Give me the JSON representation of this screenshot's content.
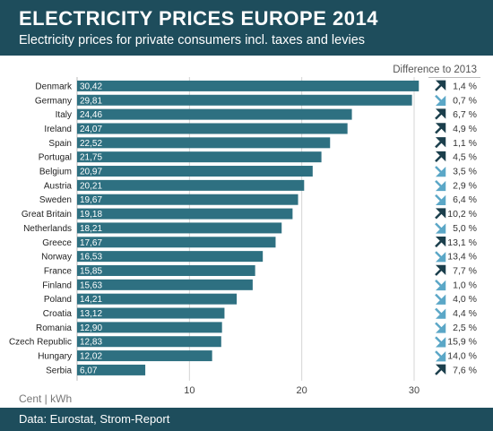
{
  "header": {
    "title": "ELECTRICITY PRICES EUROPE 2014",
    "subtitle": "Electricity prices for private consumers incl. taxes and levies"
  },
  "footer": {
    "source": "Data: Eurostat, Strom-Report"
  },
  "colors": {
    "header_bg": "#1e4d5c",
    "bar": "#2e7081",
    "arrow_up": "#1b3f4c",
    "arrow_down": "#5ba7c7"
  },
  "chart_data": {
    "type": "bar",
    "orientation": "horizontal",
    "title": "ELECTRICITY PRICES EUROPE 2014",
    "subtitle": "Electricity prices for private consumers incl. taxes and levies",
    "xlabel": "Cent | kWh",
    "xlim": [
      0,
      32
    ],
    "xticks": [
      10,
      20,
      30
    ],
    "grid": true,
    "difference_header": "Difference to 2013",
    "categories": [
      "Denmark",
      "Germany",
      "Italy",
      "Ireland",
      "Spain",
      "Portugal",
      "Belgium",
      "Austria",
      "Sweden",
      "Great Britain",
      "Netherlands",
      "Greece",
      "Norway",
      "France",
      "Finland",
      "Poland",
      "Croatia",
      "Romania",
      "Czech Republic",
      "Hungary",
      "Serbia"
    ],
    "values": [
      30.42,
      29.81,
      24.46,
      24.07,
      22.52,
      21.75,
      20.97,
      20.21,
      19.67,
      19.18,
      18.21,
      17.67,
      16.53,
      15.85,
      15.63,
      14.21,
      13.12,
      12.9,
      12.83,
      12.02,
      6.07
    ],
    "value_labels": [
      "30,42",
      "29,81",
      "24,46",
      "24,07",
      "22,52",
      "21,75",
      "20,97",
      "20,21",
      "19,67",
      "19,18",
      "18,21",
      "17,67",
      "16,53",
      "15,85",
      "15,63",
      "14,21",
      "13,12",
      "12,90",
      "12,83",
      "12,02",
      "6,07"
    ],
    "difference_labels": [
      "1,4 %",
      "0,7 %",
      "6,7 %",
      "4,9 %",
      "1,1 %",
      "4,5 %",
      "3,5 %",
      "2,9 %",
      "6,4 %",
      "10,2 %",
      "5,0 %",
      "13,1 %",
      "13,4 %",
      "7,7 %",
      "1,0 %",
      "4,0 %",
      "4,4 %",
      "2,5 %",
      "15,9 %",
      "14,0 %",
      "7,6 %"
    ],
    "difference_direction": [
      "up",
      "down",
      "up",
      "up",
      "up",
      "up",
      "down",
      "down",
      "down",
      "up",
      "down",
      "up",
      "down",
      "up",
      "down",
      "down",
      "down",
      "down",
      "down",
      "down",
      "up"
    ]
  }
}
